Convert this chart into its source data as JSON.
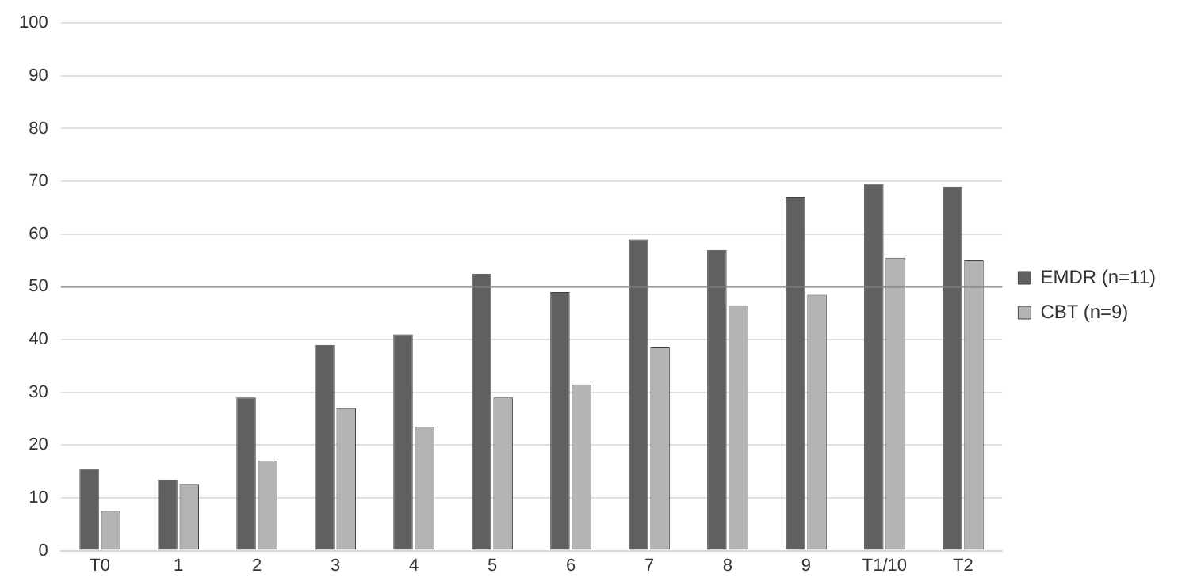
{
  "chart_data": {
    "type": "bar",
    "categories": [
      "T0",
      "1",
      "2",
      "3",
      "4",
      "5",
      "6",
      "7",
      "8",
      "9",
      "T1/10",
      "T2"
    ],
    "series": [
      {
        "name": "EMDR (n=11)",
        "color": "#606060",
        "values": [
          15.5,
          13.5,
          29,
          39,
          41,
          52.5,
          49,
          59,
          57,
          67,
          69.5,
          69
        ]
      },
      {
        "name": "CBT (n=9)",
        "color": "#b3b3b3",
        "values": [
          7.5,
          12.5,
          17,
          27,
          23.5,
          29,
          31.5,
          38.5,
          46.5,
          48.5,
          55.5,
          55
        ]
      }
    ],
    "ylim": [
      0,
      100
    ],
    "yticks": [
      0,
      10,
      20,
      30,
      40,
      50,
      60,
      70,
      80,
      90,
      100
    ],
    "grid": "y",
    "legend": "right",
    "ref_lines": [
      {
        "axis": "y",
        "value": 50,
        "color": "#808080"
      }
    ]
  }
}
